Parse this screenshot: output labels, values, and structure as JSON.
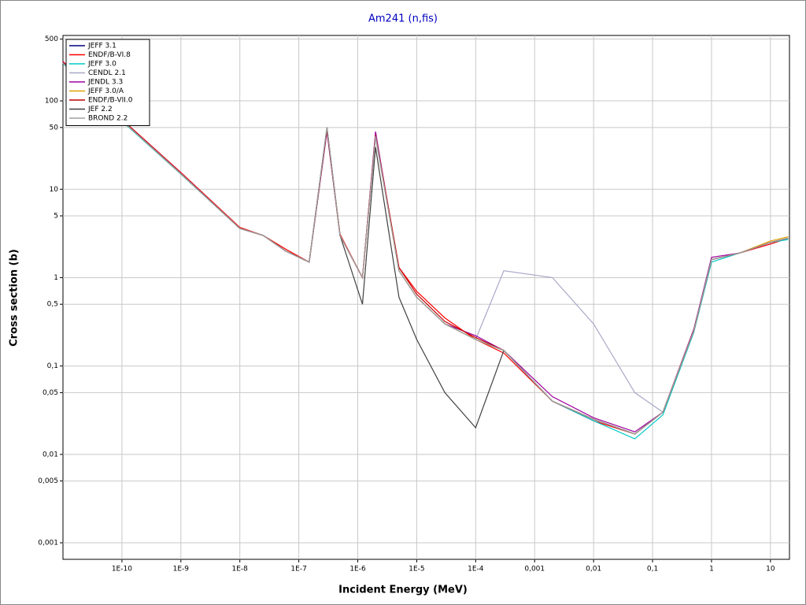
{
  "chart_data": {
    "type": "line",
    "title": "Am241 (n,fis)",
    "x_label": "Incident Energy (MeV)",
    "y_label": "Cross section (b)",
    "x_log": true,
    "y_log": true,
    "grid": true,
    "legend": "top-left",
    "xlim": [
      1e-11,
      21
    ],
    "ylim": [
      0.00065,
      550
    ],
    "xticks": [
      {
        "value": 1e-10,
        "label": "1E-10"
      },
      {
        "value": 1e-09,
        "label": "1E-9"
      },
      {
        "value": 1e-08,
        "label": "1E-8"
      },
      {
        "value": 1e-07,
        "label": "1E-7"
      },
      {
        "value": 1e-06,
        "label": "1E-6"
      },
      {
        "value": 1e-05,
        "label": "1E-5"
      },
      {
        "value": 0.0001,
        "label": "1E-4"
      },
      {
        "value": 0.001,
        "label": "0,001"
      },
      {
        "value": 0.01,
        "label": "0,01"
      },
      {
        "value": 0.1,
        "label": "0,1"
      },
      1,
      10
    ],
    "yticks": [
      {
        "value": 0.001,
        "label": "0,001"
      },
      {
        "value": 0.005,
        "label": "0,005"
      },
      {
        "value": 0.01,
        "label": "0,01"
      },
      {
        "value": 0.05,
        "label": "0,05"
      },
      {
        "value": 0.1,
        "label": "0,1"
      },
      {
        "value": 0.5,
        "label": "0,5"
      },
      1,
      5,
      10,
      50,
      100,
      500
    ],
    "x": [
      1e-11,
      1e-10,
      1e-09,
      1e-08,
      2.5e-08,
      6e-08,
      1.5e-07,
      3e-07,
      5e-07,
      1.2e-06,
      2e-06,
      5e-06,
      1e-05,
      3e-05,
      0.0001,
      0.0003,
      0.002,
      0.01,
      0.05,
      0.15,
      0.5,
      1,
      3,
      10,
      20
    ],
    "series": [
      {
        "name": "JEFF 3.1",
        "color": "#000080",
        "values": [
          270,
          60,
          15,
          3.6,
          3.0,
          2.0,
          1.5,
          50,
          3,
          1.0,
          40,
          1.2,
          0.6,
          0.3,
          0.2,
          0.15,
          0.04,
          0.025,
          0.017,
          0.03,
          0.25,
          1.6,
          1.9,
          2.5,
          2.8
        ]
      },
      {
        "name": "ENDF/B-VI.8",
        "color": "#ff0000",
        "values": [
          280,
          62,
          15.5,
          3.7,
          3.0,
          2.1,
          1.5,
          48,
          3.1,
          1.0,
          42,
          1.3,
          0.7,
          0.35,
          0.2,
          0.14,
          0.04,
          0.024,
          0.017,
          0.03,
          0.26,
          1.6,
          1.9,
          2.4,
          2.8
        ]
      },
      {
        "name": "JEFF 3.0",
        "color": "#00c8c8",
        "values": [
          265,
          59,
          14.8,
          3.6,
          3.0,
          2.0,
          1.5,
          49,
          3,
          1.0,
          40,
          1.2,
          0.6,
          0.3,
          0.2,
          0.15,
          0.04,
          0.024,
          0.015,
          0.028,
          0.24,
          1.5,
          1.9,
          2.5,
          2.7
        ]
      },
      {
        "name": "CENDL 2.1",
        "color": "#a8a8c8",
        "values": [
          270,
          60,
          15,
          3.6,
          3.0,
          2.0,
          1.5,
          45,
          3,
          1.0,
          38,
          1.2,
          0.6,
          0.3,
          0.2,
          1.2,
          1.0,
          0.3,
          0.05,
          0.03,
          0.25,
          1.6,
          1.9,
          2.5,
          2.8
        ]
      },
      {
        "name": "JENDL 3.3",
        "color": "#a000a0",
        "values": [
          275,
          61,
          15.2,
          3.6,
          3.0,
          2.0,
          1.5,
          45,
          3,
          1.0,
          45,
          1.2,
          0.6,
          0.3,
          0.22,
          0.15,
          0.045,
          0.026,
          0.018,
          0.03,
          0.26,
          1.7,
          1.9,
          2.5,
          2.8
        ]
      },
      {
        "name": "JEFF 3.0/A",
        "color": "#e0a000",
        "values": [
          270,
          60,
          15,
          3.6,
          3.0,
          2.0,
          1.5,
          50,
          3,
          1.0,
          40,
          1.2,
          0.6,
          0.3,
          0.2,
          0.15,
          0.04,
          0.025,
          0.017,
          0.03,
          0.25,
          1.6,
          1.9,
          2.6,
          2.9
        ]
      },
      {
        "name": "ENDF/B-VII.0",
        "color": "#c00000",
        "values": [
          272,
          61,
          15.1,
          3.6,
          3.0,
          2.0,
          1.5,
          47,
          3,
          1.0,
          41,
          1.3,
          0.65,
          0.32,
          0.21,
          0.15,
          0.04,
          0.025,
          0.017,
          0.03,
          0.25,
          1.6,
          1.9,
          2.5,
          2.8
        ]
      },
      {
        "name": "JEF 2.2",
        "color": "#404040",
        "values": [
          270,
          60,
          15,
          3.6,
          3.0,
          2.0,
          1.5,
          50,
          3,
          0.5,
          30,
          0.6,
          0.2,
          0.05,
          0.02,
          0.15,
          0.04,
          0.025,
          0.017,
          0.03,
          0.25,
          1.6,
          1.9,
          2.5,
          2.8
        ]
      },
      {
        "name": "BROND 2.2",
        "color": "#a0a0a0",
        "values": [
          268,
          60,
          15,
          3.6,
          3.0,
          2.0,
          1.5,
          50,
          3,
          1.0,
          40,
          1.2,
          0.6,
          0.3,
          0.2,
          0.15,
          0.04,
          0.025,
          0.017,
          0.03,
          0.25,
          1.6,
          1.9,
          2.5,
          2.8
        ]
      }
    ]
  }
}
